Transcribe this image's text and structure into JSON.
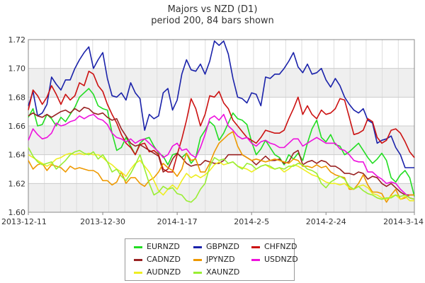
{
  "window": {
    "title_line1": "Majors vs NZD (D1)",
    "title_line2": "period 200, 84 bars shown"
  },
  "chart_data": {
    "type": "line",
    "title": "Majors vs NZD (D1)",
    "subtitle": "period 200, 84 bars shown",
    "xlabel": "",
    "ylabel": "",
    "ylim": [
      1.6,
      1.72
    ],
    "yticks": [
      1.6,
      1.62,
      1.64,
      1.66,
      1.68,
      1.7,
      1.72
    ],
    "ytick_labels": [
      "1.60",
      "1.62",
      "1.64",
      "1.66",
      "1.68",
      "1.70",
      "1.72"
    ],
    "xticks": [
      {
        "index": 0,
        "label": "2013-12-11"
      },
      {
        "index": 16,
        "label": "2013-12-30"
      },
      {
        "index": 32,
        "label": "2014-1-17"
      },
      {
        "index": 48,
        "label": "2014-2-5"
      },
      {
        "index": 64,
        "label": "2014-2-24"
      },
      {
        "index": 83,
        "label": "2014-3-14"
      }
    ],
    "grid": true,
    "background_bands": "alternating gray bands between major y gridlines",
    "legend_position": "bottom-center",
    "series": [
      {
        "name": "EURNZD",
        "color": "#22dd22",
        "values": [
          1.666,
          1.672,
          1.66,
          1.661,
          1.668,
          1.665,
          1.66,
          1.666,
          1.663,
          1.668,
          1.673,
          1.68,
          1.683,
          1.686,
          1.682,
          1.674,
          1.672,
          1.671,
          1.655,
          1.643,
          1.645,
          1.652,
          1.646,
          1.64,
          1.648,
          1.651,
          1.652,
          1.646,
          1.641,
          1.639,
          1.633,
          1.64,
          1.641,
          1.638,
          1.641,
          1.634,
          1.638,
          1.652,
          1.657,
          1.663,
          1.66,
          1.65,
          1.655,
          1.662,
          1.669,
          1.665,
          1.664,
          1.661,
          1.649,
          1.64,
          1.644,
          1.65,
          1.645,
          1.64,
          1.638,
          1.633,
          1.64,
          1.637,
          1.641,
          1.636,
          1.648,
          1.658,
          1.664,
          1.652,
          1.649,
          1.654,
          1.647,
          1.646,
          1.64,
          1.642,
          1.645,
          1.648,
          1.643,
          1.638,
          1.634,
          1.637,
          1.641,
          1.636,
          1.624,
          1.621,
          1.626,
          1.629,
          1.624,
          1.611
        ]
      },
      {
        "name": "GBPNZD",
        "color": "#1a22aa",
        "values": [
          1.674,
          1.684,
          1.667,
          1.669,
          1.675,
          1.694,
          1.689,
          1.685,
          1.692,
          1.692,
          1.7,
          1.706,
          1.711,
          1.715,
          1.7,
          1.706,
          1.711,
          1.693,
          1.681,
          1.68,
          1.683,
          1.678,
          1.69,
          1.683,
          1.679,
          1.657,
          1.668,
          1.665,
          1.667,
          1.683,
          1.686,
          1.671,
          1.678,
          1.696,
          1.706,
          1.699,
          1.698,
          1.703,
          1.696,
          1.705,
          1.719,
          1.716,
          1.719,
          1.71,
          1.693,
          1.68,
          1.679,
          1.676,
          1.683,
          1.682,
          1.674,
          1.694,
          1.693,
          1.696,
          1.696,
          1.7,
          1.705,
          1.711,
          1.701,
          1.697,
          1.703,
          1.696,
          1.697,
          1.7,
          1.692,
          1.687,
          1.693,
          1.688,
          1.68,
          1.675,
          1.671,
          1.669,
          1.672,
          1.664,
          1.662,
          1.648,
          1.65,
          1.651,
          1.653,
          1.645,
          1.64,
          1.631,
          1.631,
          1.631
        ]
      },
      {
        "name": "CHFNZD",
        "color": "#cc1111",
        "values": [
          1.671,
          1.685,
          1.681,
          1.675,
          1.68,
          1.688,
          1.682,
          1.675,
          1.682,
          1.678,
          1.681,
          1.69,
          1.688,
          1.698,
          1.696,
          1.688,
          1.684,
          1.675,
          1.668,
          1.662,
          1.654,
          1.648,
          1.645,
          1.64,
          1.647,
          1.648,
          1.642,
          1.643,
          1.64,
          1.63,
          1.628,
          1.628,
          1.64,
          1.651,
          1.664,
          1.679,
          1.672,
          1.66,
          1.668,
          1.681,
          1.68,
          1.684,
          1.676,
          1.672,
          1.664,
          1.66,
          1.656,
          1.652,
          1.65,
          1.648,
          1.652,
          1.657,
          1.656,
          1.655,
          1.655,
          1.657,
          1.665,
          1.672,
          1.68,
          1.668,
          1.674,
          1.668,
          1.665,
          1.671,
          1.668,
          1.669,
          1.672,
          1.679,
          1.678,
          1.666,
          1.654,
          1.655,
          1.657,
          1.665,
          1.663,
          1.652,
          1.648,
          1.65,
          1.657,
          1.658,
          1.655,
          1.649,
          1.642,
          1.638
        ]
      },
      {
        "name": "CADNZD",
        "color": "#992222",
        "values": [
          1.667,
          1.669,
          1.667,
          1.666,
          1.668,
          1.666,
          1.668,
          1.67,
          1.671,
          1.669,
          1.672,
          1.67,
          1.673,
          1.672,
          1.669,
          1.668,
          1.669,
          1.666,
          1.664,
          1.665,
          1.658,
          1.653,
          1.648,
          1.646,
          1.647,
          1.645,
          1.643,
          1.641,
          1.639,
          1.628,
          1.63,
          1.637,
          1.641,
          1.638,
          1.634,
          1.632,
          1.633,
          1.633,
          1.636,
          1.635,
          1.634,
          1.634,
          1.636,
          1.64,
          1.64,
          1.64,
          1.64,
          1.638,
          1.636,
          1.633,
          1.636,
          1.639,
          1.636,
          1.636,
          1.637,
          1.634,
          1.635,
          1.641,
          1.643,
          1.633,
          1.635,
          1.636,
          1.634,
          1.636,
          1.635,
          1.632,
          1.632,
          1.63,
          1.627,
          1.627,
          1.626,
          1.628,
          1.627,
          1.623,
          1.625,
          1.624,
          1.62,
          1.618,
          1.62,
          1.617,
          1.614,
          1.612,
          1.612,
          1.612
        ]
      },
      {
        "name": "JPYNZD",
        "color": "#ee9900",
        "values": [
          1.636,
          1.63,
          1.633,
          1.634,
          1.629,
          1.633,
          1.632,
          1.631,
          1.628,
          1.632,
          1.63,
          1.631,
          1.63,
          1.629,
          1.629,
          1.627,
          1.622,
          1.622,
          1.619,
          1.621,
          1.628,
          1.62,
          1.624,
          1.624,
          1.62,
          1.618,
          1.622,
          1.624,
          1.628,
          1.634,
          1.631,
          1.629,
          1.625,
          1.63,
          1.641,
          1.636,
          1.637,
          1.628,
          1.628,
          1.634,
          1.642,
          1.648,
          1.651,
          1.654,
          1.656,
          1.646,
          1.64,
          1.638,
          1.636,
          1.637,
          1.636,
          1.635,
          1.636,
          1.637,
          1.636,
          1.635,
          1.634,
          1.637,
          1.636,
          1.632,
          1.632,
          1.631,
          1.633,
          1.631,
          1.632,
          1.628,
          1.626,
          1.625,
          1.624,
          1.616,
          1.616,
          1.62,
          1.626,
          1.619,
          1.614,
          1.614,
          1.613,
          1.607,
          1.612,
          1.616,
          1.609,
          1.61,
          1.612,
          1.612
        ]
      },
      {
        "name": "USDNZD",
        "color": "#ee11dd",
        "values": [
          1.65,
          1.658,
          1.654,
          1.651,
          1.652,
          1.655,
          1.662,
          1.66,
          1.661,
          1.663,
          1.664,
          1.667,
          1.665,
          1.667,
          1.668,
          1.665,
          1.664,
          1.661,
          1.655,
          1.652,
          1.651,
          1.649,
          1.651,
          1.648,
          1.65,
          1.651,
          1.648,
          1.645,
          1.642,
          1.638,
          1.64,
          1.646,
          1.648,
          1.643,
          1.644,
          1.64,
          1.638,
          1.645,
          1.654,
          1.665,
          1.667,
          1.664,
          1.668,
          1.66,
          1.657,
          1.653,
          1.651,
          1.652,
          1.648,
          1.646,
          1.649,
          1.65,
          1.648,
          1.647,
          1.645,
          1.645,
          1.648,
          1.651,
          1.651,
          1.646,
          1.648,
          1.65,
          1.652,
          1.65,
          1.648,
          1.648,
          1.648,
          1.644,
          1.643,
          1.64,
          1.636,
          1.635,
          1.635,
          1.628,
          1.628,
          1.625,
          1.623,
          1.62,
          1.621,
          1.62,
          1.616,
          1.613,
          1.61,
          1.609
        ]
      },
      {
        "name": "AUDNZD",
        "color": "#eeee22",
        "values": [
          1.64,
          1.638,
          1.636,
          1.634,
          1.632,
          1.634,
          1.637,
          1.638,
          1.64,
          1.641,
          1.64,
          1.641,
          1.64,
          1.641,
          1.64,
          1.64,
          1.638,
          1.635,
          1.633,
          1.63,
          1.628,
          1.625,
          1.63,
          1.634,
          1.636,
          1.632,
          1.628,
          1.622,
          1.615,
          1.612,
          1.616,
          1.619,
          1.616,
          1.622,
          1.627,
          1.624,
          1.626,
          1.624,
          1.626,
          1.629,
          1.633,
          1.635,
          1.633,
          1.634,
          1.635,
          1.632,
          1.631,
          1.63,
          1.628,
          1.63,
          1.632,
          1.633,
          1.631,
          1.63,
          1.631,
          1.628,
          1.63,
          1.633,
          1.632,
          1.63,
          1.628,
          1.626,
          1.625,
          1.623,
          1.621,
          1.62,
          1.62,
          1.619,
          1.62,
          1.617,
          1.616,
          1.618,
          1.619,
          1.617,
          1.613,
          1.612,
          1.61,
          1.609,
          1.611,
          1.612,
          1.609,
          1.611,
          1.608,
          1.608
        ]
      },
      {
        "name": "XAUNZD",
        "color": "#99ee33",
        "values": [
          1.645,
          1.639,
          1.635,
          1.633,
          1.634,
          1.635,
          1.63,
          1.633,
          1.636,
          1.64,
          1.642,
          1.643,
          1.641,
          1.64,
          1.642,
          1.637,
          1.64,
          1.635,
          1.628,
          1.63,
          1.625,
          1.622,
          1.627,
          1.633,
          1.64,
          1.63,
          1.62,
          1.612,
          1.614,
          1.618,
          1.616,
          1.617,
          1.613,
          1.612,
          1.608,
          1.607,
          1.61,
          1.616,
          1.62,
          1.632,
          1.638,
          1.636,
          1.637,
          1.634,
          1.635,
          1.632,
          1.63,
          1.634,
          1.633,
          1.63,
          1.632,
          1.633,
          1.632,
          1.63,
          1.631,
          1.63,
          1.632,
          1.632,
          1.634,
          1.633,
          1.63,
          1.629,
          1.627,
          1.62,
          1.617,
          1.621,
          1.623,
          1.625,
          1.623,
          1.618,
          1.616,
          1.618,
          1.615,
          1.613,
          1.612,
          1.61,
          1.609,
          1.61,
          1.61,
          1.612,
          1.611,
          1.612,
          1.61,
          1.609
        ]
      }
    ]
  }
}
